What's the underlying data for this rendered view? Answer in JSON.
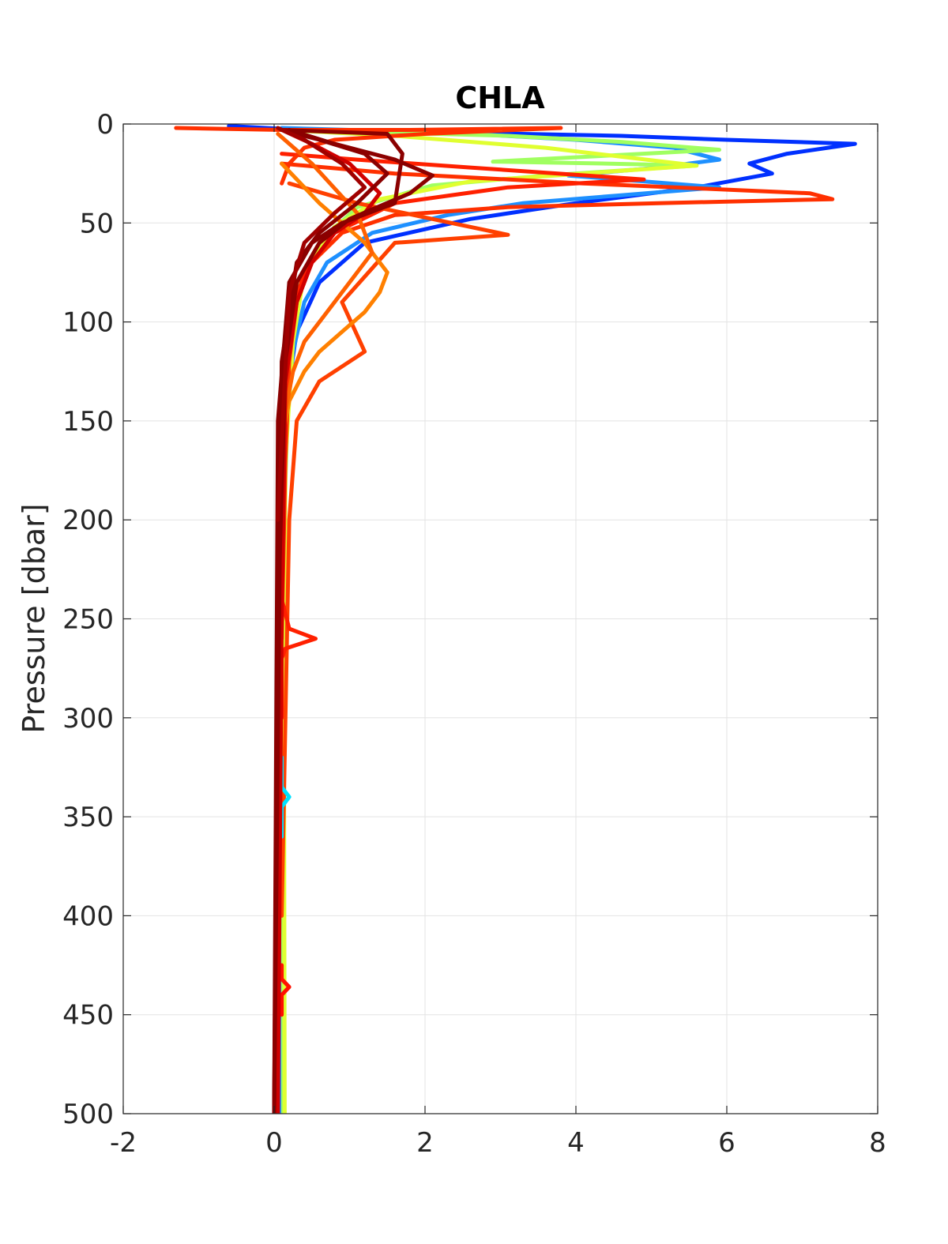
{
  "chart_data": {
    "type": "line",
    "title": "CHLA",
    "xlabel": "",
    "ylabel": "Pressure [dbar]",
    "xlim": [
      -2,
      8
    ],
    "ylim": [
      0,
      500
    ],
    "y_reversed": true,
    "grid": true,
    "x_ticks": [
      "-2",
      "0",
      "2",
      "4",
      "6",
      "8"
    ],
    "y_ticks": [
      "0",
      "50",
      "100",
      "150",
      "200",
      "250",
      "300",
      "350",
      "400",
      "450",
      "500"
    ],
    "colors": {
      "profile_palette": [
        "#0010ff",
        "#0050ff",
        "#1e90ff",
        "#00c8ff",
        "#40ffd0",
        "#a0ff60",
        "#e0ff30",
        "#ffd000",
        "#ff8000",
        "#ff4000",
        "#ff1000",
        "#d00000",
        "#8b0000"
      ]
    },
    "series": [
      {
        "color": "#0030ff",
        "x": [
          -0.6,
          0.4,
          2.0,
          4.6,
          6.0,
          7.7,
          6.8,
          6.3,
          6.6,
          5.6,
          4.0,
          2.6,
          1.2,
          0.6,
          0.3,
          0.2,
          0.15,
          0.12,
          0.1,
          0.1,
          0.1
        ],
        "y": [
          1,
          3,
          4,
          6,
          8,
          10,
          15,
          20,
          25,
          32,
          40,
          48,
          60,
          80,
          105,
          130,
          170,
          250,
          350,
          450,
          500
        ]
      },
      {
        "color": "#1e90ff",
        "x": [
          0.1,
          1.0,
          2.6,
          4.0,
          5.3,
          5.9,
          5.1,
          3.9,
          5.9,
          4.6,
          3.3,
          2.3,
          1.3,
          0.7,
          0.4,
          0.25,
          0.15,
          0.12,
          0.1,
          0.1
        ],
        "y": [
          2,
          3,
          5,
          8,
          12,
          18,
          22,
          26,
          32,
          36,
          40,
          46,
          55,
          70,
          90,
          115,
          160,
          260,
          400,
          500
        ]
      },
      {
        "color": "#a0ff60",
        "x": [
          0.2,
          1.2,
          3.1,
          4.6,
          5.9,
          4.4,
          2.9,
          4.4,
          5.6,
          3.6,
          2.1,
          1.1,
          0.6,
          0.3,
          0.2,
          0.15,
          0.12,
          0.12
        ],
        "y": [
          3,
          4,
          6,
          9,
          13,
          16,
          19,
          20,
          21,
          26,
          31,
          42,
          60,
          85,
          120,
          180,
          300,
          500
        ]
      },
      {
        "color": "#e0ff30",
        "x": [
          0.1,
          1.6,
          3.6,
          5.6,
          4.1,
          2.6,
          1.4,
          0.8,
          0.4,
          0.25,
          0.15,
          0.13,
          0.14
        ],
        "y": [
          3,
          6,
          12,
          21,
          25,
          29,
          38,
          52,
          75,
          110,
          170,
          300,
          500
        ]
      },
      {
        "color": "#ff3000",
        "x": [
          0.1,
          1.6,
          4.1,
          7.1,
          7.4,
          5.1,
          3.1,
          1.6,
          0.9,
          0.5,
          0.3,
          0.2,
          0.15,
          0.1
        ],
        "y": [
          20,
          25,
          30,
          35,
          38,
          40,
          42,
          46,
          55,
          70,
          90,
          120,
          170,
          260
        ]
      },
      {
        "color": "#ff2000",
        "x": [
          0.1,
          1.1,
          2.6,
          4.9,
          3.1,
          1.6,
          0.8,
          0.4,
          0.2,
          0.1
        ],
        "y": [
          15,
          18,
          22,
          28,
          32,
          40,
          55,
          75,
          100,
          140
        ]
      },
      {
        "color": "#ff4000",
        "x": [
          0.2,
          1.1,
          2.1,
          3.1,
          1.6,
          0.9,
          1.2,
          0.6,
          0.3,
          0.2,
          0.15,
          0.1
        ],
        "y": [
          30,
          40,
          48,
          56,
          60,
          90,
          115,
          130,
          150,
          200,
          300,
          400
        ]
      },
      {
        "color": "#ff3000",
        "x": [
          -1.3,
          0.1,
          0.8,
          1.8,
          3.8,
          2.0,
          0.8,
          0.4,
          0.2,
          0.1
        ],
        "y": [
          2,
          3,
          3,
          3,
          2,
          5,
          8,
          12,
          20,
          30
        ]
      },
      {
        "color": "#ff2000",
        "x": [
          0.1,
          0.2,
          0.55,
          0.15,
          0.1,
          0.1
        ],
        "y": [
          240,
          255,
          260,
          265,
          270,
          300
        ]
      },
      {
        "color": "#ff8000",
        "x": [
          0.1,
          0.6,
          1.2,
          1.5,
          1.4,
          1.2,
          0.9,
          0.6,
          0.4,
          0.2,
          0.1
        ],
        "y": [
          20,
          40,
          60,
          75,
          85,
          95,
          105,
          115,
          125,
          140,
          160
        ]
      },
      {
        "color": "#ff6000",
        "x": [
          0.05,
          0.5,
          1.1,
          1.3,
          1.0,
          0.7,
          0.4,
          0.25,
          0.15,
          0.1
        ],
        "y": [
          5,
          20,
          45,
          65,
          80,
          95,
          110,
          125,
          145,
          180
        ]
      },
      {
        "color": "#00e0ff",
        "x": [
          0.1,
          0.1,
          0.2,
          0.1,
          0.1
        ],
        "y": [
          320,
          335,
          340,
          345,
          360
        ]
      },
      {
        "color": "#ff1000",
        "x": [
          0.1,
          0.1,
          0.2,
          0.1,
          0.1
        ],
        "y": [
          425,
          432,
          436,
          440,
          450
        ]
      },
      {
        "color": "#d00000",
        "x": [
          0.1,
          0.5,
          1.0,
          1.4,
          1.2,
          0.8,
          0.5,
          0.3,
          0.15,
          0.1,
          0.05
        ],
        "y": [
          3,
          10,
          20,
          35,
          45,
          55,
          70,
          90,
          130,
          250,
          500
        ]
      },
      {
        "color": "#8b0000",
        "x": [
          0.2,
          0.8,
          1.6,
          2.1,
          1.8,
          1.0,
          0.6,
          0.3,
          0.15,
          0.05,
          0.0
        ],
        "y": [
          3,
          10,
          18,
          26,
          35,
          48,
          60,
          80,
          120,
          250,
          500
        ]
      },
      {
        "color": "#8b0000",
        "x": [
          0.1,
          1.5,
          1.7,
          1.6,
          0.9,
          0.5,
          0.2,
          0.05,
          0.0
        ],
        "y": [
          3,
          5,
          15,
          40,
          50,
          60,
          80,
          150,
          500
        ]
      },
      {
        "color": "#8b0000",
        "x": [
          0.1,
          0.6,
          1.2,
          1.5,
          1.1,
          0.6,
          0.3,
          0.1,
          0.0
        ],
        "y": [
          3,
          8,
          15,
          25,
          40,
          55,
          70,
          120,
          500
        ]
      },
      {
        "color": "#a00000",
        "x": [
          0.05,
          0.4,
          0.9,
          1.2,
          0.8,
          0.4,
          0.2,
          0.05
        ],
        "y": [
          2,
          8,
          20,
          32,
          45,
          60,
          85,
          200
        ]
      }
    ]
  }
}
